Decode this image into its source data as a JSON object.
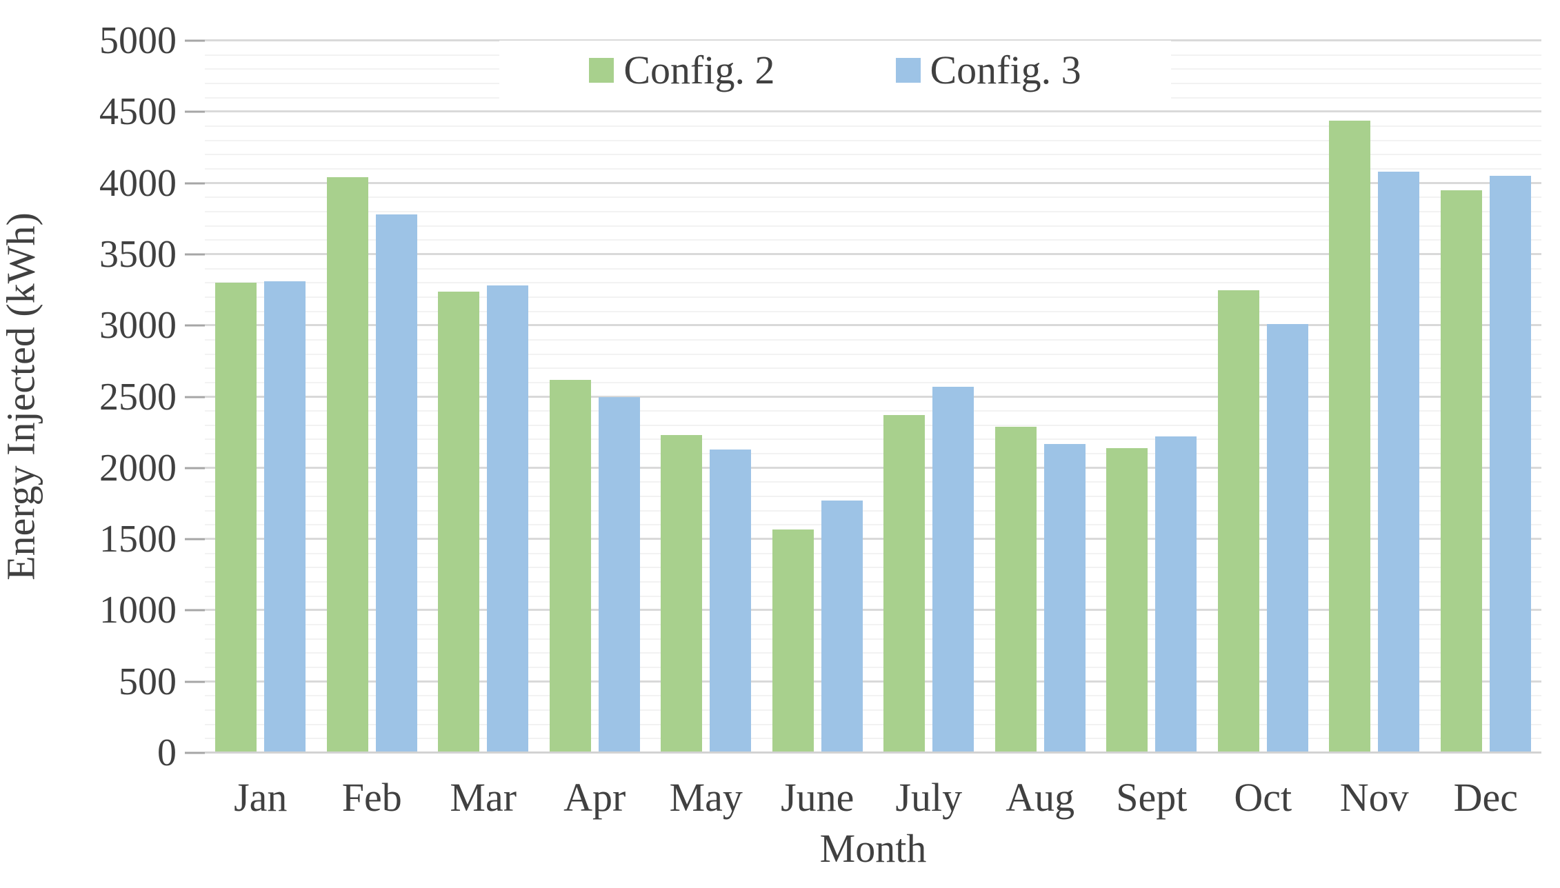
{
  "chart_data": {
    "type": "bar",
    "title": "",
    "xlabel": "Month",
    "ylabel": "Energy Injected (kWh)",
    "ylim": [
      0,
      5000
    ],
    "major_step": 500,
    "minor_step": 100,
    "grid": "horizontal major gridlines every 500 with faint minor gridlines every 100",
    "legend_position": "top-center inside plot area",
    "categories": [
      "Jan",
      "Feb",
      "Mar",
      "Apr",
      "May",
      "June",
      "July",
      "Aug",
      "Sept",
      "Oct",
      "Nov",
      "Dec"
    ],
    "series": [
      {
        "name": "Config. 2",
        "color": "#a8d08d",
        "values": [
          3300,
          4040,
          3240,
          2620,
          2230,
          1570,
          2370,
          2290,
          2140,
          3250,
          4440,
          3950
        ]
      },
      {
        "name": "Config. 3",
        "color": "#9dc3e6",
        "values": [
          3310,
          3780,
          3280,
          2500,
          2130,
          1770,
          2570,
          2170,
          2220,
          3010,
          4080,
          4050
        ]
      }
    ],
    "y_tick_labels": [
      "0",
      "500",
      "1000",
      "1500",
      "2000",
      "2500",
      "3000",
      "3500",
      "4000",
      "4500",
      "5000"
    ]
  },
  "colors": {
    "background": "#ffffff",
    "text": "#404040",
    "major_gridline": "#d9d9d9",
    "minor_gridline": "#f2f2f2",
    "axis_line": "#d2d2d2",
    "tick_mark": "#a6a6a6"
  }
}
